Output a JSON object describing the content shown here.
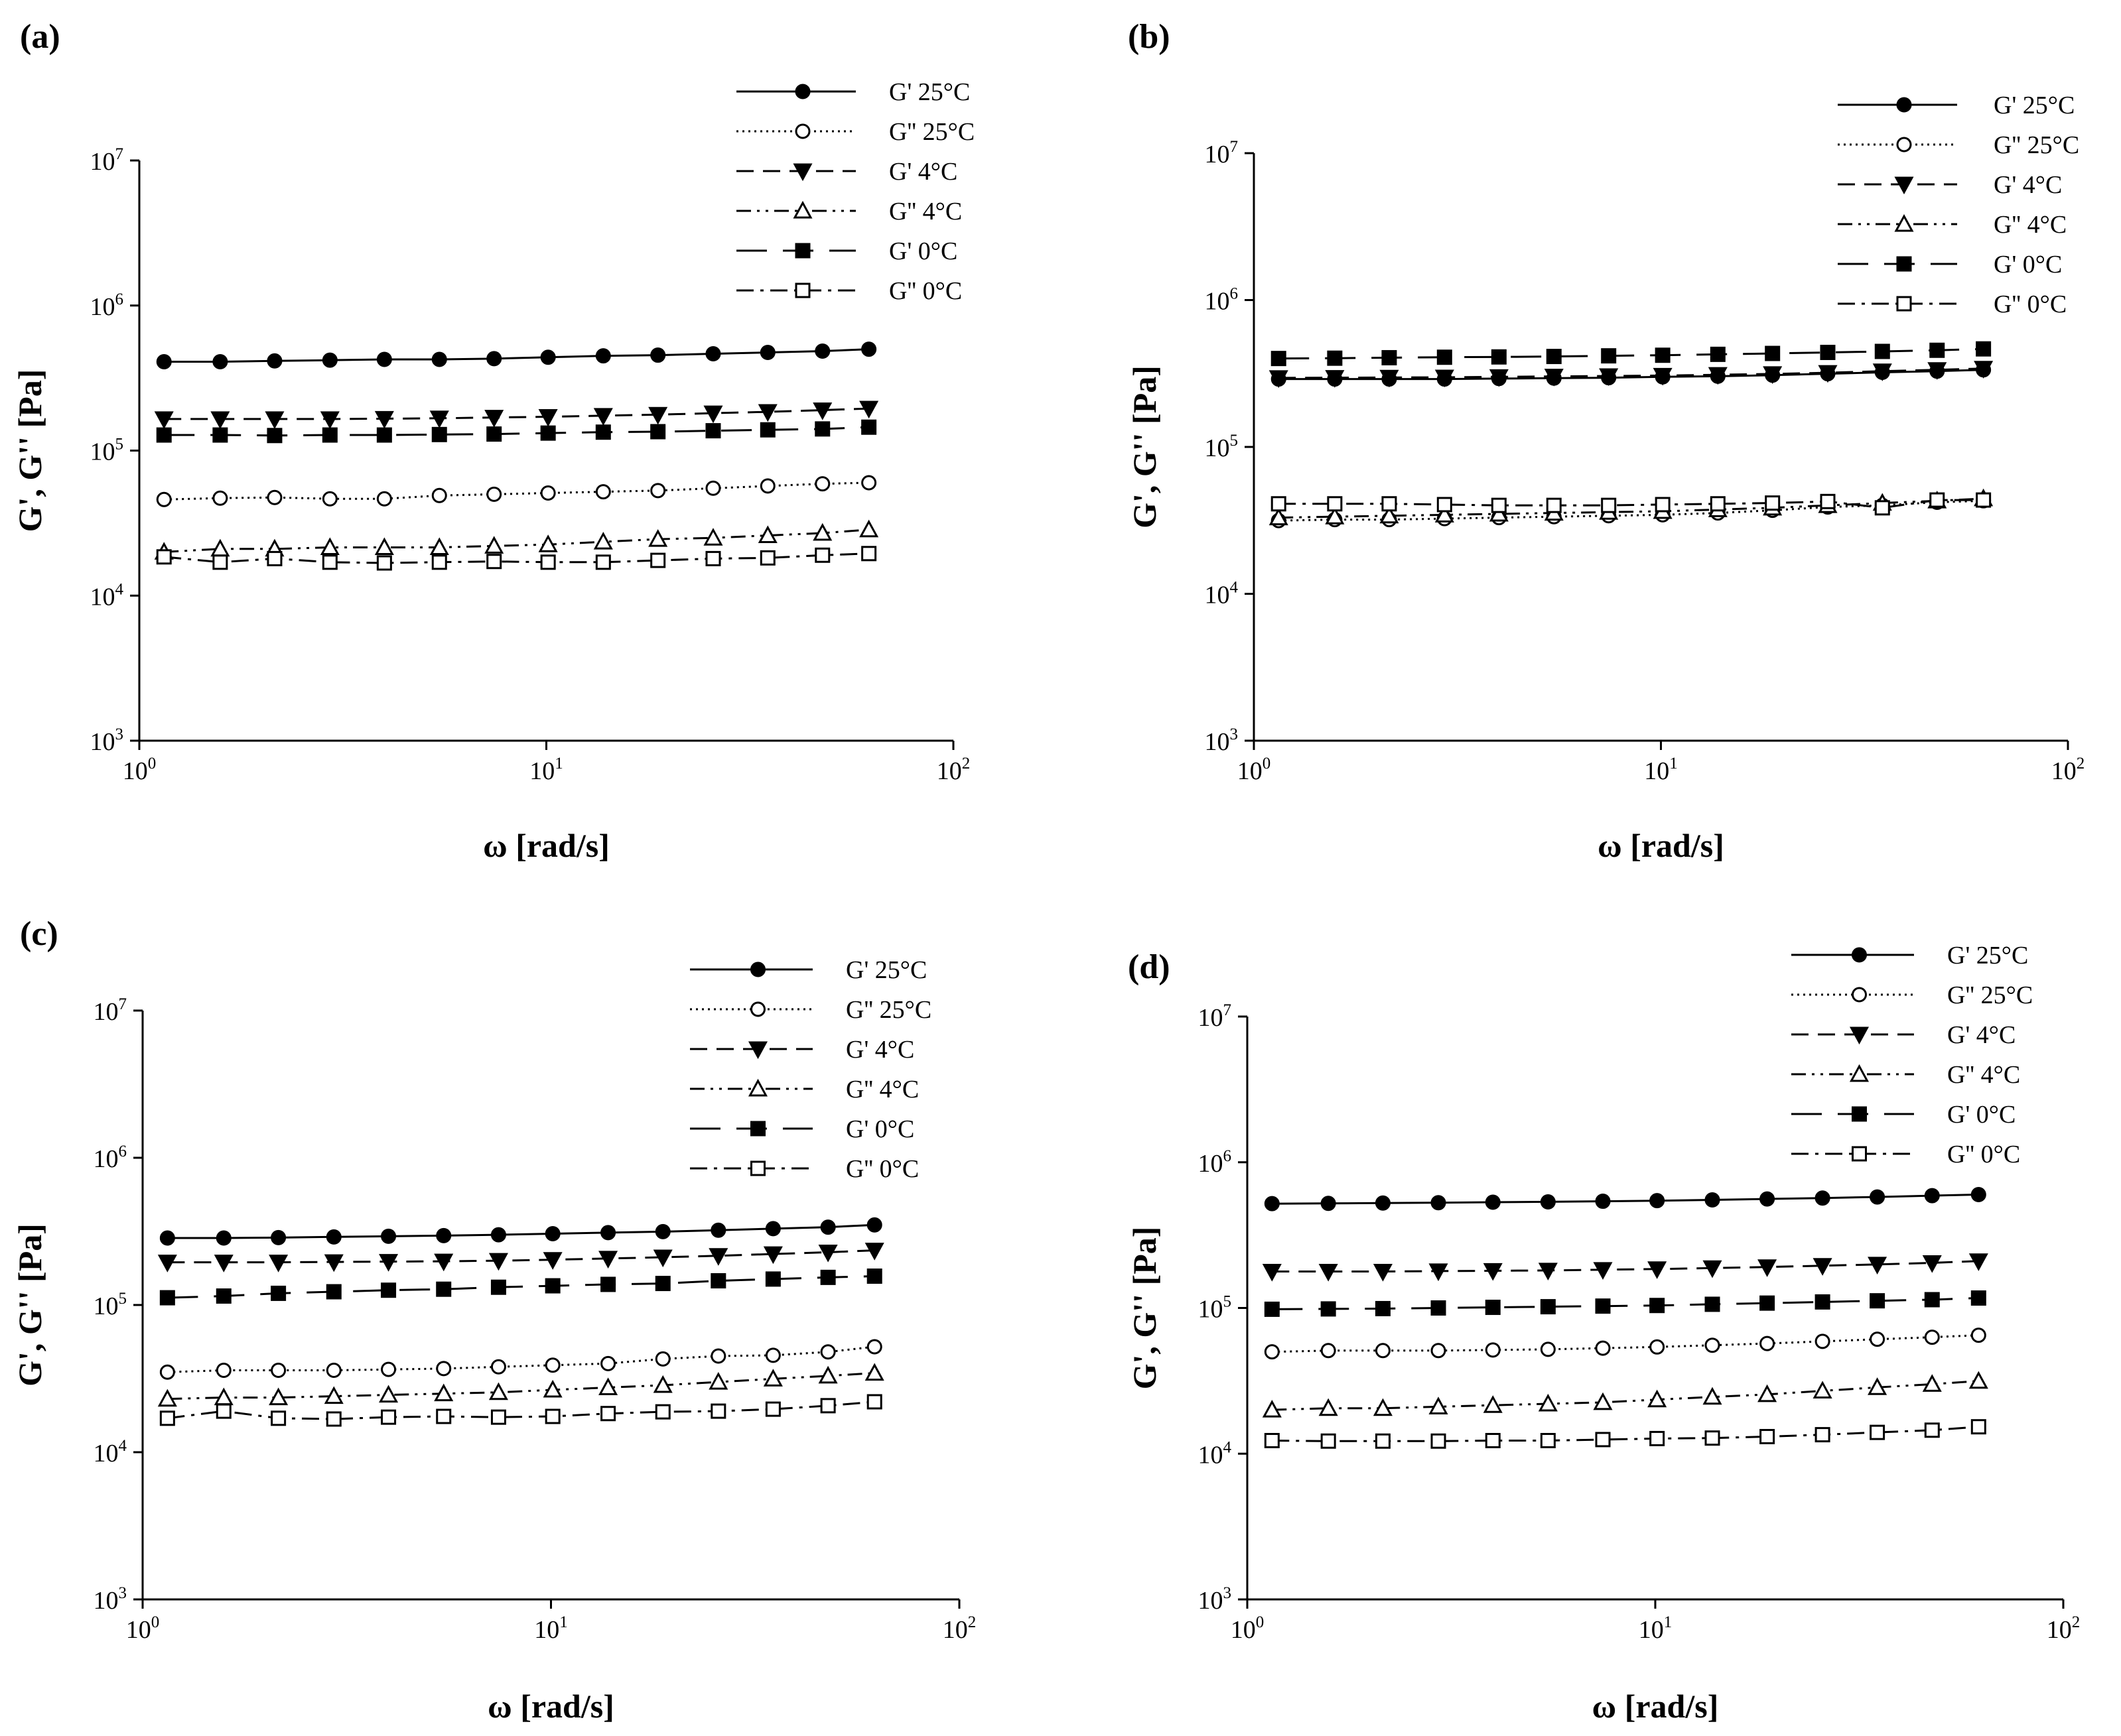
{
  "chart_data": [
    {
      "type": "line",
      "panel_label": "(a)",
      "xlabel": "ω [rad/s]",
      "ylabel": "G', G'' [Pa]",
      "xscale": "log",
      "yscale": "log",
      "xlim": [
        1,
        100
      ],
      "ylim": [
        1000,
        10000000
      ],
      "x_ticks": [
        {
          "base": "10",
          "exp": "0"
        },
        {
          "base": "10",
          "exp": "1"
        },
        {
          "base": "10",
          "exp": "2"
        }
      ],
      "y_ticks": [
        {
          "base": "10",
          "exp": "3"
        },
        {
          "base": "10",
          "exp": "4"
        },
        {
          "base": "10",
          "exp": "5"
        },
        {
          "base": "10",
          "exp": "6"
        },
        {
          "base": "10",
          "exp": "7"
        }
      ],
      "legend_position": "top-right",
      "grid": false,
      "x": [
        1.15,
        1.58,
        2.15,
        2.94,
        4.0,
        5.46,
        7.44,
        10.1,
        13.8,
        18.8,
        25.7,
        35.0,
        47.7,
        62.0
      ],
      "series": [
        {
          "name": "G' 25°C",
          "marker": "filled-circle",
          "dash": "solid",
          "values": [
            410000,
            410000,
            415000,
            420000,
            425000,
            425000,
            430000,
            440000,
            450000,
            455000,
            465000,
            475000,
            485000,
            500000
          ]
        },
        {
          "name": "G'' 25°C",
          "marker": "open-circle",
          "dash": "dotted",
          "values": [
            46000,
            47000,
            47500,
            46500,
            46500,
            49000,
            50000,
            51000,
            52000,
            53000,
            55000,
            57000,
            59000,
            60000
          ]
        },
        {
          "name": "G' 4°C",
          "marker": "filled-triangle-down",
          "dash": "dashed",
          "values": [
            165000,
            165000,
            165000,
            165000,
            166000,
            167000,
            169000,
            171000,
            174000,
            177000,
            181000,
            185000,
            190000,
            195000
          ]
        },
        {
          "name": "G'' 4°C",
          "marker": "open-triangle-up",
          "dash": "dash-dot-dot",
          "values": [
            20000,
            21000,
            21000,
            21500,
            21500,
            21500,
            22000,
            22500,
            23500,
            24500,
            25000,
            26000,
            27000,
            28500
          ]
        },
        {
          "name": "G' 0°C",
          "marker": "filled-square",
          "dash": "long-dash",
          "values": [
            128000,
            128000,
            127000,
            128000,
            128000,
            129000,
            130000,
            132000,
            134000,
            135000,
            137000,
            139000,
            141000,
            145000
          ]
        },
        {
          "name": "G'' 0°C",
          "marker": "open-square",
          "dash": "dash-dot",
          "values": [
            18500,
            17000,
            18000,
            17000,
            16800,
            17000,
            17200,
            17000,
            17000,
            17500,
            18000,
            18200,
            19000,
            19500
          ]
        }
      ]
    },
    {
      "type": "line",
      "panel_label": "(b)",
      "xlabel": "ω [rad/s]",
      "ylabel": "G', G'' [Pa]",
      "xscale": "log",
      "yscale": "log",
      "xlim": [
        1,
        100
      ],
      "ylim": [
        1000,
        10000000
      ],
      "x_ticks": [
        {
          "base": "10",
          "exp": "0"
        },
        {
          "base": "10",
          "exp": "1"
        },
        {
          "base": "10",
          "exp": "2"
        }
      ],
      "y_ticks": [
        {
          "base": "10",
          "exp": "3"
        },
        {
          "base": "10",
          "exp": "4"
        },
        {
          "base": "10",
          "exp": "5"
        },
        {
          "base": "10",
          "exp": "6"
        },
        {
          "base": "10",
          "exp": "7"
        }
      ],
      "legend_position": "top-right",
      "grid": false,
      "x": [
        1.15,
        1.58,
        2.15,
        2.94,
        4.0,
        5.46,
        7.44,
        10.1,
        13.8,
        18.8,
        25.7,
        35.0,
        47.7,
        62.0
      ],
      "series": [
        {
          "name": "G' 25°C",
          "marker": "filled-circle",
          "dash": "solid",
          "values": [
            290000,
            290000,
            290000,
            290000,
            292000,
            294000,
            296000,
            300000,
            303000,
            308000,
            315000,
            322000,
            328000,
            335000
          ]
        },
        {
          "name": "G'' 25°C",
          "marker": "open-circle",
          "dash": "dotted",
          "values": [
            31500,
            32000,
            32000,
            32500,
            33000,
            33500,
            34000,
            34500,
            35500,
            37000,
            39000,
            40000,
            42000,
            43000
          ]
        },
        {
          "name": "G' 4°C",
          "marker": "filled-triangle-down",
          "dash": "dashed",
          "values": [
            295000,
            296000,
            297000,
            298000,
            300000,
            302000,
            304000,
            306000,
            310000,
            314000,
            320000,
            328000,
            335000,
            342000
          ]
        },
        {
          "name": "G'' 4°C",
          "marker": "open-triangle-up",
          "dash": "dash-dot-dot",
          "values": [
            33000,
            33500,
            34000,
            34500,
            35000,
            35500,
            36000,
            36500,
            37500,
            38500,
            40000,
            41500,
            43000,
            44500
          ]
        },
        {
          "name": "G' 0°C",
          "marker": "filled-square",
          "dash": "long-dash",
          "values": [
            400000,
            402000,
            405000,
            408000,
            410000,
            413000,
            417000,
            421000,
            427000,
            433000,
            440000,
            447000,
            455000,
            465000
          ]
        },
        {
          "name": "G'' 0°C",
          "marker": "open-square",
          "dash": "dash-dot",
          "values": [
            41000,
            41000,
            41000,
            40500,
            40000,
            40000,
            40000,
            40500,
            41000,
            41500,
            42500,
            38500,
            43500,
            43500
          ]
        }
      ]
    },
    {
      "type": "line",
      "panel_label": "(c)",
      "xlabel": "ω [rad/s]",
      "ylabel": "G', G'' [Pa]",
      "xscale": "log",
      "yscale": "log",
      "xlim": [
        1,
        100
      ],
      "ylim": [
        1000,
        10000000
      ],
      "x_ticks": [
        {
          "base": "10",
          "exp": "0"
        },
        {
          "base": "10",
          "exp": "1"
        },
        {
          "base": "10",
          "exp": "2"
        }
      ],
      "y_ticks": [
        {
          "base": "10",
          "exp": "3"
        },
        {
          "base": "10",
          "exp": "4"
        },
        {
          "base": "10",
          "exp": "5"
        },
        {
          "base": "10",
          "exp": "6"
        },
        {
          "base": "10",
          "exp": "7"
        }
      ],
      "legend_position": "top-right",
      "grid": false,
      "x": [
        1.15,
        1.58,
        2.15,
        2.94,
        4.0,
        5.46,
        7.44,
        10.1,
        13.8,
        18.8,
        25.7,
        35.0,
        47.7,
        62.0
      ],
      "series": [
        {
          "name": "G' 25°C",
          "marker": "filled-circle",
          "dash": "solid",
          "values": [
            285000,
            285000,
            287000,
            290000,
            293000,
            296000,
            300000,
            305000,
            310000,
            315000,
            322000,
            330000,
            338000,
            350000
          ]
        },
        {
          "name": "G'' 25°C",
          "marker": "open-circle",
          "dash": "dotted",
          "values": [
            35000,
            36000,
            36000,
            36000,
            36500,
            37000,
            38000,
            39000,
            40000,
            43000,
            45000,
            45500,
            48000,
            52000
          ]
        },
        {
          "name": "G' 4°C",
          "marker": "filled-triangle-down",
          "dash": "dashed",
          "values": [
            195000,
            195000,
            195000,
            196000,
            197000,
            198000,
            200000,
            203000,
            207000,
            211000,
            216000,
            222000,
            228000,
            235000
          ]
        },
        {
          "name": "G'' 4°C",
          "marker": "open-triangle-up",
          "dash": "dash-dot-dot",
          "values": [
            23000,
            23500,
            23500,
            24000,
            24500,
            25000,
            25500,
            26500,
            27500,
            28500,
            30000,
            31500,
            33000,
            34500
          ]
        },
        {
          "name": "G' 0°C",
          "marker": "filled-square",
          "dash": "long-dash",
          "values": [
            112000,
            115000,
            120000,
            123000,
            126000,
            128000,
            132000,
            135000,
            138000,
            140000,
            146000,
            150000,
            154000,
            157000
          ]
        },
        {
          "name": "G'' 0°C",
          "marker": "open-square",
          "dash": "dash-dot",
          "values": [
            17000,
            19000,
            17000,
            16800,
            17300,
            17500,
            17300,
            17500,
            18300,
            18800,
            19000,
            19600,
            20700,
            22000
          ]
        }
      ]
    },
    {
      "type": "line",
      "panel_label": "(d)",
      "xlabel": "ω [rad/s]",
      "ylabel": "G', G'' [Pa]",
      "xscale": "log",
      "yscale": "log",
      "xlim": [
        1,
        100
      ],
      "ylim": [
        1000,
        10000000
      ],
      "x_ticks": [
        {
          "base": "10",
          "exp": "0"
        },
        {
          "base": "10",
          "exp": "1"
        },
        {
          "base": "10",
          "exp": "2"
        }
      ],
      "y_ticks": [
        {
          "base": "10",
          "exp": "3"
        },
        {
          "base": "10",
          "exp": "4"
        },
        {
          "base": "10",
          "exp": "5"
        },
        {
          "base": "10",
          "exp": "6"
        },
        {
          "base": "10",
          "exp": "7"
        }
      ],
      "legend_position": "top-right",
      "grid": false,
      "x": [
        1.15,
        1.58,
        2.15,
        2.94,
        4.0,
        5.46,
        7.44,
        10.1,
        13.8,
        18.8,
        25.7,
        35.0,
        47.7,
        62.0
      ],
      "series": [
        {
          "name": "G' 25°C",
          "marker": "filled-circle",
          "dash": "solid",
          "values": [
            520000,
            522000,
            525000,
            528000,
            532000,
            535000,
            540000,
            545000,
            552000,
            560000,
            568000,
            578000,
            590000,
            600000
          ]
        },
        {
          "name": "G'' 25°C",
          "marker": "open-circle",
          "dash": "dotted",
          "values": [
            50000,
            51000,
            51000,
            51000,
            51500,
            52000,
            53000,
            54000,
            55500,
            57000,
            59000,
            61000,
            63000,
            65000
          ]
        },
        {
          "name": "G' 4°C",
          "marker": "filled-triangle-down",
          "dash": "dashed",
          "values": [
            178000,
            178000,
            178000,
            179000,
            180000,
            181000,
            183000,
            185000,
            188000,
            191000,
            195000,
            199000,
            204000,
            210000
          ]
        },
        {
          "name": "G'' 4°C",
          "marker": "open-triangle-up",
          "dash": "dash-dot-dot",
          "values": [
            20000,
            20500,
            20500,
            21000,
            21500,
            22000,
            22500,
            23500,
            24500,
            25500,
            27000,
            28500,
            30000,
            31500
          ]
        },
        {
          "name": "G' 0°C",
          "marker": "filled-square",
          "dash": "long-dash",
          "values": [
            98000,
            98500,
            99000,
            100000,
            101000,
            102000,
            103000,
            104000,
            106000,
            108000,
            110000,
            112000,
            114000,
            117000
          ]
        },
        {
          "name": "G'' 0°C",
          "marker": "open-square",
          "dash": "dash-dot",
          "values": [
            12300,
            12200,
            12200,
            12200,
            12300,
            12300,
            12500,
            12700,
            12800,
            13100,
            13500,
            14000,
            14500,
            15300
          ]
        }
      ]
    }
  ]
}
